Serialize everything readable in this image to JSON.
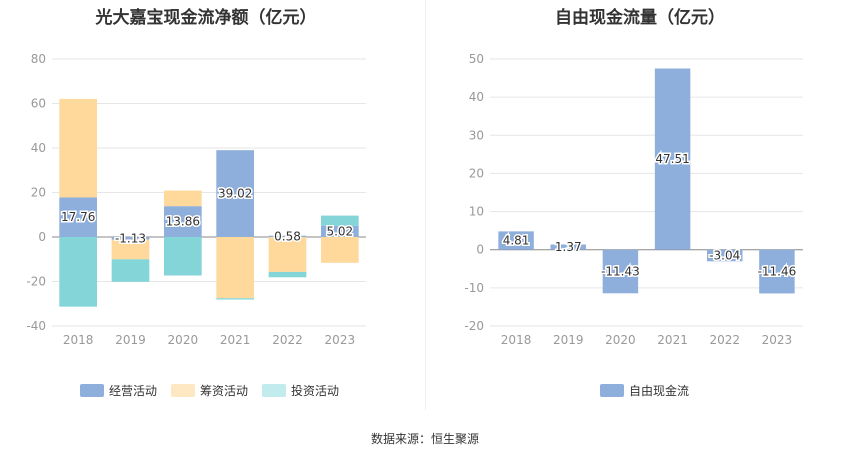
{
  "source": "数据来源：恒生聚源",
  "colors": {
    "operating": "#8eaedc",
    "financing": "#fed99b",
    "investing": "#83d5d8",
    "fcf": "#8eaedc"
  },
  "chart_data": [
    {
      "type": "bar",
      "stacked": true,
      "title": "光大嘉宝现金流净额（亿元）",
      "categories": [
        "2018",
        "2019",
        "2020",
        "2021",
        "2022",
        "2023"
      ],
      "ylim": [
        -40,
        80
      ],
      "yticks": [
        -40,
        -20,
        0,
        20,
        40,
        60,
        80
      ],
      "legend": [
        "经营活动",
        "筹资活动",
        "投资活动"
      ],
      "legend_position": "bottom",
      "series": [
        {
          "name": "经营活动",
          "values": [
            17.76,
            -1.13,
            13.86,
            39.02,
            0.58,
            5.02
          ],
          "labels": [
            "17.76",
            "-1.13",
            "13.86",
            "39.02",
            "0.58",
            "5.02"
          ]
        },
        {
          "name": "筹资活动",
          "values": [
            44.3,
            -8.9,
            7.0,
            -27.5,
            -15.7,
            -11.6
          ]
        },
        {
          "name": "投资活动",
          "values": [
            -31.3,
            -10.1,
            -17.3,
            -0.6,
            -2.4,
            4.6
          ]
        }
      ]
    },
    {
      "type": "bar",
      "title": "自由现金流量（亿元）",
      "categories": [
        "2018",
        "2019",
        "2020",
        "2021",
        "2022",
        "2023"
      ],
      "ylim": [
        -20,
        50
      ],
      "yticks": [
        -20,
        -10,
        0,
        10,
        20,
        30,
        40,
        50
      ],
      "legend": [
        "自由现金流"
      ],
      "legend_position": "bottom",
      "series": [
        {
          "name": "自由现金流",
          "values": [
            4.81,
            1.37,
            -11.43,
            47.51,
            -3.04,
            -11.46
          ],
          "labels": [
            "4.81",
            "1.37",
            "-11.43",
            "47.51",
            "-3.04",
            "-11.46"
          ]
        }
      ]
    }
  ]
}
